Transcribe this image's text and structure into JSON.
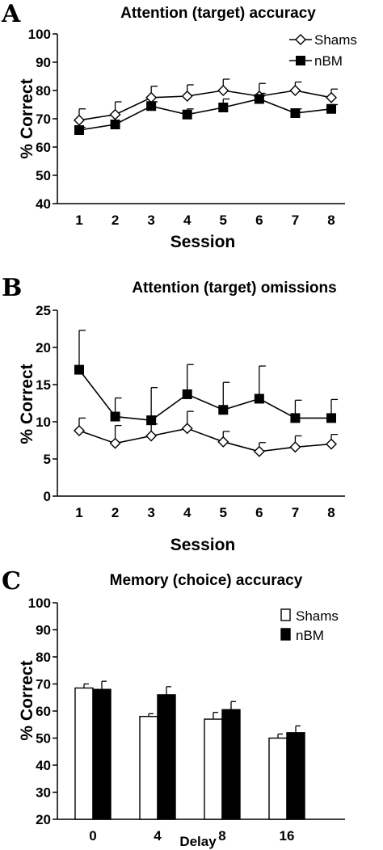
{
  "chart_data": [
    {
      "panel": "A",
      "type": "line",
      "title": "Attention (target) accuracy",
      "xlabel": "Session",
      "ylabel": "% Correct",
      "x": [
        1,
        2,
        3,
        4,
        5,
        6,
        7,
        8
      ],
      "ylim": [
        40,
        100
      ],
      "yticks": [
        40,
        50,
        60,
        70,
        80,
        90,
        100
      ],
      "legend_position": "top-right",
      "series": [
        {
          "name": "Shams",
          "marker": "open-diamond",
          "values": [
            69.5,
            71.5,
            77.5,
            78,
            80,
            78,
            80,
            77.5
          ],
          "err": [
            4,
            4.5,
            4,
            4,
            4,
            4.5,
            3,
            3
          ]
        },
        {
          "name": "nBM",
          "marker": "filled-square",
          "values": [
            66,
            68,
            74.5,
            71.5,
            74,
            77,
            72,
            73.5
          ],
          "err": [
            1,
            1,
            1.5,
            2,
            3,
            2,
            1.5,
            1.5
          ]
        }
      ]
    },
    {
      "panel": "B",
      "type": "line",
      "title": "Attention (target) omissions",
      "xlabel": "Session",
      "ylabel": "% Correct",
      "x": [
        1,
        2,
        3,
        4,
        5,
        6,
        7,
        8
      ],
      "ylim": [
        0,
        25
      ],
      "yticks": [
        0,
        5,
        10,
        15,
        20,
        25
      ],
      "series": [
        {
          "name": "Shams",
          "marker": "open-diamond",
          "values": [
            8.8,
            7.1,
            8.1,
            9.1,
            7.3,
            6,
            6.6,
            7
          ],
          "err": [
            1.7,
            2.4,
            1.6,
            2.3,
            1.4,
            1.2,
            1.5,
            1.3
          ]
        },
        {
          "name": "nBM",
          "marker": "filled-square",
          "values": [
            17,
            10.7,
            10.2,
            13.7,
            11.6,
            13.1,
            10.5,
            10.5
          ],
          "err": [
            5.3,
            2.5,
            4.4,
            4,
            3.7,
            4.4,
            2.4,
            2.5
          ]
        }
      ]
    },
    {
      "panel": "C",
      "type": "bar",
      "title": "Memory (choice) accuracy",
      "xlabel": "Delay",
      "ylabel": "% Correct",
      "categories": [
        "0",
        "4",
        "8",
        "16"
      ],
      "ylim": [
        20,
        100
      ],
      "yticks": [
        20,
        30,
        40,
        50,
        60,
        70,
        80,
        90,
        100
      ],
      "legend_position": "top-right",
      "series": [
        {
          "name": "Shams",
          "color": "#ffffff",
          "values": [
            68.5,
            58,
            57,
            50
          ],
          "err": [
            1.5,
            1,
            2.5,
            1.5
          ]
        },
        {
          "name": "nBM",
          "color": "#000000",
          "values": [
            68,
            66,
            60.5,
            52
          ],
          "err": [
            3,
            3,
            3,
            2.5
          ]
        }
      ]
    }
  ]
}
